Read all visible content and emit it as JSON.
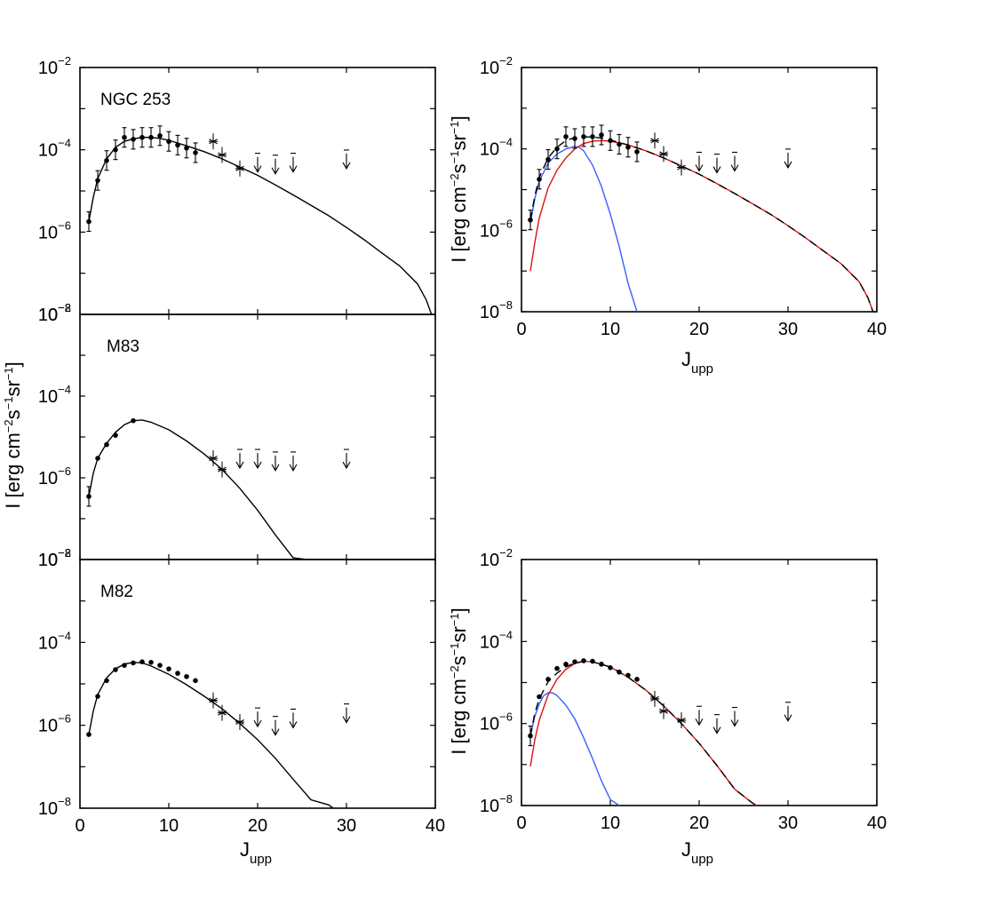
{
  "figure": {
    "ylabel_main": "I [erg cm",
    "ylabel_parts": [
      "I [erg cm",
      "−2",
      "s",
      "−1",
      "sr",
      "−1",
      "]"
    ],
    "xlabel_main": "J",
    "xlabel_sub": "upp"
  },
  "chart_data": [
    {
      "id": "ngc253_left",
      "type": "scatter",
      "title": "NGC 253",
      "xlabel": "J_upp",
      "ylabel": "I [erg cm^-2 s^-1 sr^-1]",
      "xlim": [
        0,
        40
      ],
      "ylim_log10": [
        -8,
        -2
      ],
      "yscale": "log",
      "colors": {
        "total": "#000000"
      },
      "points": [
        {
          "x": 1,
          "y": 1.8e-06,
          "err": true
        },
        {
          "x": 2,
          "y": 1.8e-05,
          "err": true
        },
        {
          "x": 3,
          "y": 5.5e-05,
          "err": true
        },
        {
          "x": 4,
          "y": 0.0001,
          "err": true
        },
        {
          "x": 5,
          "y": 0.0002,
          "err": true
        },
        {
          "x": 6,
          "y": 0.00018,
          "err": true
        },
        {
          "x": 7,
          "y": 0.0002,
          "err": true
        },
        {
          "x": 8,
          "y": 0.0002,
          "err": true
        },
        {
          "x": 9,
          "y": 0.00022,
          "err": true
        },
        {
          "x": 10,
          "y": 0.00016,
          "err": true
        },
        {
          "x": 11,
          "y": 0.00013,
          "err": true
        },
        {
          "x": 12,
          "y": 0.00011,
          "err": true
        },
        {
          "x": 13,
          "y": 8.5e-05,
          "err": true
        }
      ],
      "asterisks": [
        {
          "x": 15,
          "y": 0.00016
        },
        {
          "x": 16,
          "y": 7.5e-05
        },
        {
          "x": 18,
          "y": 3.5e-05
        }
      ],
      "upper_limits": [
        {
          "x": 20,
          "y": 5e-05
        },
        {
          "x": 22,
          "y": 4.5e-05
        },
        {
          "x": 24,
          "y": 5e-05
        },
        {
          "x": 30,
          "y": 6e-05
        }
      ],
      "series": [
        {
          "name": "total",
          "color": "#000000",
          "dashed": false,
          "x": [
            1,
            1.5,
            2,
            3,
            4,
            5,
            6,
            7,
            8,
            9,
            10,
            12,
            14,
            16,
            18,
            20,
            22,
            24,
            26,
            28,
            30,
            32,
            34,
            36,
            38,
            39,
            40
          ],
          "y": [
            1.8e-06,
            7e-06,
            2e-05,
            6e-05,
            0.000115,
            0.00016,
            0.000185,
            0.0002,
            0.0002,
            0.00019,
            0.00017,
            0.000125,
            9e-05,
            6e-05,
            3.8e-05,
            2.4e-05,
            1.4e-05,
            8e-06,
            4.5e-06,
            2.5e-06,
            1.3e-06,
            6.5e-07,
            3.1e-07,
            1.5e-07,
            5.5e-08,
            2.2e-08,
            5.5e-09
          ]
        }
      ]
    },
    {
      "id": "m83_left",
      "type": "scatter",
      "title": "M83",
      "xlabel": "J_upp",
      "ylabel": "I [erg cm^-2 s^-1 sr^-1]",
      "xlim": [
        0,
        40
      ],
      "ylim_log10": [
        -8,
        -2
      ],
      "yscale": "log",
      "colors": {
        "total": "#000000"
      },
      "points": [
        {
          "x": 1,
          "y": 3.5e-07,
          "err": true
        },
        {
          "x": 2,
          "y": 3e-06,
          "err": false
        },
        {
          "x": 3,
          "y": 6.5e-06,
          "err": false
        },
        {
          "x": 4,
          "y": 1.1e-05,
          "err": false
        },
        {
          "x": 6,
          "y": 2.5e-05,
          "err": false
        }
      ],
      "asterisks": [
        {
          "x": 15,
          "y": 3e-06
        },
        {
          "x": 16,
          "y": 1.6e-06
        }
      ],
      "upper_limits": [
        {
          "x": 18,
          "y": 3e-06
        },
        {
          "x": 20,
          "y": 3e-06
        },
        {
          "x": 22,
          "y": 2.6e-06
        },
        {
          "x": 24,
          "y": 2.6e-06
        },
        {
          "x": 30,
          "y": 3e-06
        }
      ],
      "series": [
        {
          "name": "total",
          "color": "#000000",
          "dashed": false,
          "x": [
            1,
            1.5,
            2,
            3,
            4,
            5,
            6,
            7,
            8,
            10,
            12,
            14,
            16,
            18,
            20,
            22,
            24,
            25.5
          ],
          "y": [
            3.5e-07,
            1.3e-06,
            3e-06,
            7e-06,
            1.3e-05,
            2e-05,
            2.5e-05,
            2.6e-05,
            2.3e-05,
            1.5e-05,
            8e-06,
            3.8e-06,
            1.6e-06,
            5.5e-07,
            1.6e-07,
            4e-08,
            1.1e-08,
            1e-08
          ]
        }
      ]
    },
    {
      "id": "m82_left",
      "type": "scatter",
      "title": "M82",
      "xlabel": "J_upp",
      "ylabel": "I [erg cm^-2 s^-1 sr^-1]",
      "xlim": [
        0,
        40
      ],
      "ylim_log10": [
        -8,
        -2
      ],
      "yscale": "log",
      "colors": {
        "total": "#000000"
      },
      "points": [
        {
          "x": 1,
          "y": 6e-07,
          "err": false
        },
        {
          "x": 2,
          "y": 5e-06,
          "err": false
        },
        {
          "x": 3,
          "y": 1.2e-05,
          "err": false
        },
        {
          "x": 4,
          "y": 2.2e-05,
          "err": false
        },
        {
          "x": 5,
          "y": 2.8e-05,
          "err": false
        },
        {
          "x": 6,
          "y": 3.2e-05,
          "err": false
        },
        {
          "x": 7,
          "y": 3.4e-05,
          "err": false
        },
        {
          "x": 8,
          "y": 3.3e-05,
          "err": false
        },
        {
          "x": 9,
          "y": 2.8e-05,
          "err": false
        },
        {
          "x": 10,
          "y": 2.3e-05,
          "err": false
        },
        {
          "x": 11,
          "y": 1.8e-05,
          "err": false
        },
        {
          "x": 12,
          "y": 1.5e-05,
          "err": false
        },
        {
          "x": 13,
          "y": 1.2e-05,
          "err": false
        }
      ],
      "asterisks": [
        {
          "x": 15,
          "y": 4e-06
        },
        {
          "x": 16,
          "y": 2e-06
        },
        {
          "x": 18,
          "y": 1.2e-06
        }
      ],
      "upper_limits": [
        {
          "x": 20,
          "y": 1.6e-06
        },
        {
          "x": 22,
          "y": 1e-06
        },
        {
          "x": 24,
          "y": 1.5e-06
        },
        {
          "x": 30,
          "y": 2e-06
        }
      ],
      "series": [
        {
          "name": "total",
          "color": "#000000",
          "dashed": false,
          "x": [
            1,
            1.5,
            2,
            3,
            4,
            5,
            6,
            7,
            8,
            10,
            12,
            14,
            16,
            18,
            20,
            22,
            24,
            26,
            28,
            28.5
          ],
          "y": [
            6e-07,
            2.2e-06,
            5.5e-06,
            1.4e-05,
            2.3e-05,
            3e-05,
            3.3e-05,
            3.2e-05,
            2.7e-05,
            1.7e-05,
            9.5e-06,
            5e-06,
            2.5e-06,
            1.1e-06,
            4.5e-07,
            1.6e-07,
            5e-08,
            1.6e-08,
            1.2e-08,
            1e-08
          ]
        }
      ]
    },
    {
      "id": "ngc253_right",
      "type": "scatter",
      "title": "",
      "xlabel": "J_upp",
      "ylabel": "I [erg cm^-2 s^-1 sr^-1]",
      "xlim": [
        0,
        40
      ],
      "ylim_log10": [
        -8,
        -2
      ],
      "yscale": "log",
      "colors": {
        "total": "#000000",
        "low": "#3a5fff",
        "high": "#e01010"
      },
      "points": [
        {
          "x": 1,
          "y": 1.8e-06,
          "err": true
        },
        {
          "x": 2,
          "y": 1.8e-05,
          "err": true
        },
        {
          "x": 3,
          "y": 5.5e-05,
          "err": true
        },
        {
          "x": 4,
          "y": 0.0001,
          "err": true
        },
        {
          "x": 5,
          "y": 0.0002,
          "err": true
        },
        {
          "x": 6,
          "y": 0.00018,
          "err": true
        },
        {
          "x": 7,
          "y": 0.0002,
          "err": true
        },
        {
          "x": 8,
          "y": 0.0002,
          "err": true
        },
        {
          "x": 9,
          "y": 0.00022,
          "err": true
        },
        {
          "x": 10,
          "y": 0.00016,
          "err": true
        },
        {
          "x": 11,
          "y": 0.00013,
          "err": true
        },
        {
          "x": 12,
          "y": 0.00011,
          "err": true
        },
        {
          "x": 13,
          "y": 8.5e-05,
          "err": true
        }
      ],
      "asterisks": [
        {
          "x": 15,
          "y": 0.00016
        },
        {
          "x": 16,
          "y": 7.5e-05
        },
        {
          "x": 18,
          "y": 3.5e-05
        }
      ],
      "upper_limits": [
        {
          "x": 20,
          "y": 5e-05
        },
        {
          "x": 22,
          "y": 4.5e-05
        },
        {
          "x": 24,
          "y": 5e-05
        },
        {
          "x": 30,
          "y": 6e-05
        }
      ],
      "series": [
        {
          "name": "low",
          "color": "#3a5fff",
          "dashed": false,
          "x": [
            1,
            1.5,
            2,
            3,
            4,
            5,
            6,
            6.5,
            7,
            8,
            9,
            10,
            11,
            12,
            13
          ],
          "y": [
            1.5e-06,
            6e-06,
            1.6e-05,
            4.5e-05,
            7.5e-05,
            0.0001,
            0.000115,
            0.00011,
            9e-05,
            4e-05,
            1.2e-05,
            2.5e-06,
            4e-07,
            5e-08,
            1e-08
          ]
        },
        {
          "name": "high",
          "color": "#e01010",
          "dashed": false,
          "x": [
            1,
            1.5,
            2,
            3,
            4,
            5,
            6,
            7,
            8,
            9,
            10,
            12,
            14,
            16,
            18,
            20,
            22,
            24,
            26,
            28,
            30,
            32,
            34,
            36,
            38,
            39,
            40
          ],
          "y": [
            1e-07,
            5e-07,
            2e-06,
            1.1e-05,
            3e-05,
            6e-05,
            0.0001,
            0.000135,
            0.000155,
            0.00016,
            0.000155,
            0.000125,
            9e-05,
            6e-05,
            3.8e-05,
            2.4e-05,
            1.4e-05,
            8e-06,
            4.5e-06,
            2.5e-06,
            1.3e-06,
            6.5e-07,
            3.1e-07,
            1.5e-07,
            5.5e-08,
            2.2e-08,
            5.5e-09
          ]
        },
        {
          "name": "total",
          "color": "#000000",
          "dashed": true,
          "x": [
            1,
            1.5,
            2,
            3,
            4,
            5,
            6,
            7,
            8,
            9,
            10,
            12,
            14,
            16,
            18,
            20,
            22,
            24,
            26,
            28,
            30,
            32,
            34,
            36,
            38,
            39,
            40
          ],
          "y": [
            1.8e-06,
            7e-06,
            2e-05,
            6e-05,
            0.00011,
            0.00016,
            0.00019,
            0.0002,
            0.000195,
            0.000185,
            0.000165,
            0.000125,
            9e-05,
            6e-05,
            3.8e-05,
            2.4e-05,
            1.4e-05,
            8e-06,
            4.5e-06,
            2.5e-06,
            1.3e-06,
            6.5e-07,
            3.1e-07,
            1.5e-07,
            5.5e-08,
            2.2e-08,
            5.5e-09
          ]
        }
      ]
    },
    {
      "id": "m82_right",
      "type": "scatter",
      "title": "",
      "xlabel": "J_upp",
      "ylabel": "I [erg cm^-2 s^-1 sr^-1]",
      "xlim": [
        0,
        40
      ],
      "ylim_log10": [
        -8,
        -2
      ],
      "yscale": "log",
      "colors": {
        "total": "#000000",
        "low": "#3a5fff",
        "high": "#e01010"
      },
      "points": [
        {
          "x": 1,
          "y": 5e-07,
          "err": true
        },
        {
          "x": 2,
          "y": 4.5e-06,
          "err": false
        },
        {
          "x": 3,
          "y": 1.2e-05,
          "err": false
        },
        {
          "x": 4,
          "y": 2.2e-05,
          "err": false
        },
        {
          "x": 5,
          "y": 2.8e-05,
          "err": false
        },
        {
          "x": 6,
          "y": 3.2e-05,
          "err": false
        },
        {
          "x": 7,
          "y": 3.4e-05,
          "err": false
        },
        {
          "x": 8,
          "y": 3.3e-05,
          "err": false
        },
        {
          "x": 9,
          "y": 2.8e-05,
          "err": false
        },
        {
          "x": 10,
          "y": 2.3e-05,
          "err": false
        },
        {
          "x": 11,
          "y": 1.8e-05,
          "err": false
        },
        {
          "x": 12,
          "y": 1.5e-05,
          "err": false
        },
        {
          "x": 13,
          "y": 1.2e-05,
          "err": false
        }
      ],
      "asterisks": [
        {
          "x": 15,
          "y": 4e-06
        },
        {
          "x": 16,
          "y": 2e-06
        },
        {
          "x": 18,
          "y": 1.2e-06
        }
      ],
      "upper_limits": [
        {
          "x": 20,
          "y": 1.6e-06
        },
        {
          "x": 22,
          "y": 1e-06
        },
        {
          "x": 24,
          "y": 1.5e-06
        },
        {
          "x": 30,
          "y": 2e-06
        }
      ],
      "series": [
        {
          "name": "low",
          "color": "#3a5fff",
          "dashed": false,
          "x": [
            1,
            1.5,
            2,
            2.5,
            3,
            3.5,
            4,
            5,
            6,
            7,
            8,
            9,
            10,
            11
          ],
          "y": [
            5e-07,
            1.5e-06,
            3e-06,
            4.8e-06,
            5.6e-06,
            5.6e-06,
            4.8e-06,
            2.8e-06,
            1.3e-06,
            4.5e-07,
            1.4e-07,
            4e-08,
            1.4e-08,
            1e-08
          ]
        },
        {
          "name": "high",
          "color": "#e01010",
          "dashed": false,
          "x": [
            1,
            1.5,
            2,
            3,
            4,
            5,
            6,
            7,
            8,
            10,
            12,
            14,
            16,
            18,
            20,
            22,
            24,
            26,
            26.5
          ],
          "y": [
            9e-08,
            4e-07,
            1.2e-06,
            5e-06,
            1.2e-05,
            2.1e-05,
            2.9e-05,
            3.3e-05,
            3.2e-05,
            2.4e-05,
            1.35e-05,
            6.5e-06,
            2.7e-06,
            1e-06,
            3.3e-07,
            9.5e-08,
            2.5e-08,
            1.15e-08,
            1e-08
          ]
        },
        {
          "name": "total",
          "color": "#000000",
          "dashed": true,
          "x": [
            1,
            1.5,
            2,
            3,
            4,
            5,
            6,
            7,
            8,
            10,
            12,
            14,
            16,
            18,
            20,
            22,
            24,
            26,
            26.5
          ],
          "y": [
            5e-07,
            1.8e-06,
            4e-06,
            1.05e-05,
            1.7e-05,
            2.4e-05,
            3e-05,
            3.3e-05,
            3.2e-05,
            2.4e-05,
            1.35e-05,
            6.5e-06,
            2.7e-06,
            1e-06,
            3.3e-07,
            9.5e-08,
            2.5e-08,
            1.15e-08,
            1e-08
          ]
        }
      ]
    }
  ]
}
